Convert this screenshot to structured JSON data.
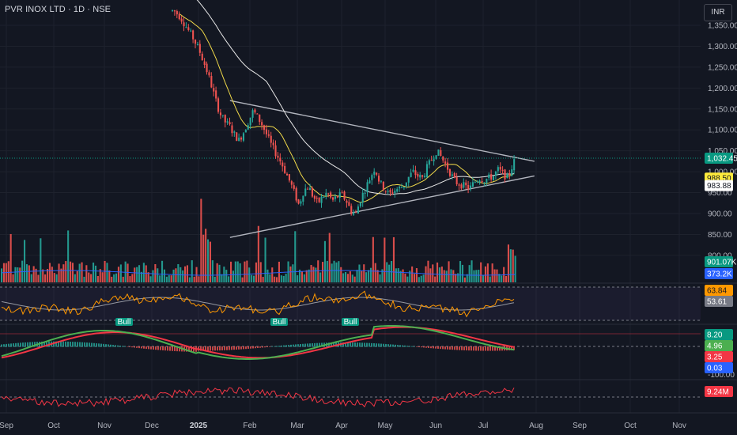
{
  "header": {
    "title": "PVR INOX LTD · 1D · NSE",
    "currency": "INR"
  },
  "chart_data": {
    "type": "candlestick",
    "y_axis": {
      "ticks": [
        "1,350.00",
        "1,300.00",
        "1,250.00",
        "1,200.00",
        "1,150.00",
        "1,100.00",
        "1,050.00",
        "1,000.00",
        "950.00",
        "900.00",
        "850.00",
        "800.00"
      ],
      "range": [
        800,
        1390
      ]
    },
    "x_axis": {
      "labels": [
        "Sep",
        "Oct",
        "Nov",
        "Dec",
        "2025",
        "Feb",
        "Mar",
        "Apr",
        "May",
        "Jun",
        "Jul",
        "Aug",
        "Sep",
        "Oct",
        "Nov"
      ]
    },
    "price_tags": [
      {
        "label": "1,032.45",
        "value": 1032.45,
        "bg": "#089981",
        "fg": "#ffffff"
      },
      {
        "label": "988.50",
        "value": 988.5,
        "bg": "#ffeb3b",
        "fg": "#131722"
      },
      {
        "label": "983.88",
        "value": 983.88,
        "bg": "#ffffff",
        "fg": "#131722"
      }
    ],
    "triangle": {
      "upper_line": [
        [
          "2025-01-20",
          1170
        ],
        [
          "2025-07-31",
          1025
        ]
      ],
      "lower_line": [
        [
          "2025-01-20",
          843
        ],
        [
          "2025-07-31",
          990
        ]
      ]
    },
    "volume_tags": [
      {
        "label": "901.07K",
        "bg": "#089981"
      },
      {
        "label": "373.2K",
        "bg": "#2962ff"
      }
    ],
    "rsi": {
      "tags": [
        {
          "label": "63.84",
          "bg": "#ff9800"
        },
        {
          "label": "53.61",
          "bg": "#787b86"
        }
      ],
      "bull_labels": [
        "Bull",
        "Bull",
        "Bull"
      ]
    },
    "macd": {
      "tags": [
        {
          "label": "8.20",
          "bg": "#089981"
        },
        {
          "label": "4.96",
          "bg": "#4caf50"
        },
        {
          "label": "3.25",
          "bg": "#f23645"
        },
        {
          "label": "0.03",
          "bg": "#2962ff"
        }
      ],
      "axis_label": "-100.00"
    },
    "bottom_indicator": {
      "tag": {
        "label": "9.24M",
        "bg": "#f23645"
      }
    },
    "colors": {
      "up": "#26a69a",
      "down": "#ef5350",
      "ma_fast": "#f0d94a",
      "ma_slow": "#e8e8e8",
      "rsi": "#ff9800",
      "rsi_ma": "#9598a1",
      "macd_green": "#4caf50",
      "macd_red": "#f23645"
    }
  }
}
